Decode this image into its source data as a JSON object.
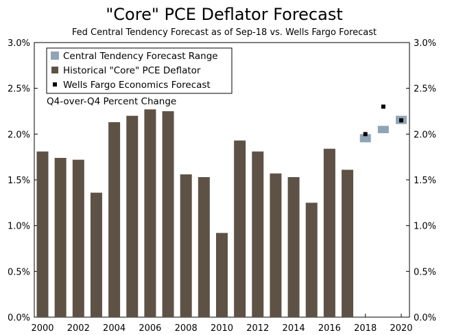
{
  "chart_data": {
    "type": "bar",
    "title": "\"Core\" PCE Deflator Forecast",
    "subtitle": "Fed Central Tendency Forecast as of Sep-18 vs. Wells Fargo Forecast",
    "annotation": "Q4-over-Q4 Percent Change",
    "xlabel": "",
    "ylabel": "",
    "ylim": [
      0,
      3.0
    ],
    "xlim": [
      2000,
      2020
    ],
    "y_ticks": [
      "0.0%",
      "0.5%",
      "1.0%",
      "1.5%",
      "2.0%",
      "2.5%",
      "3.0%"
    ],
    "y_tick_values": [
      0,
      0.5,
      1.0,
      1.5,
      2.0,
      2.5,
      3.0
    ],
    "x_ticks": [
      "2000",
      "2002",
      "2004",
      "2006",
      "2008",
      "2010",
      "2012",
      "2014",
      "2016",
      "2018",
      "2020"
    ],
    "x_tick_values": [
      2000,
      2002,
      2004,
      2006,
      2008,
      2010,
      2012,
      2014,
      2016,
      2018,
      2020
    ],
    "grid": false,
    "legend_position": "top-left",
    "colors": {
      "historical": "#5e5246",
      "range": "#8fa4b4",
      "forecast": "#000000"
    },
    "legend": [
      {
        "label": "Central Tendency Forecast Range",
        "kind": "range"
      },
      {
        "label": "Historical \"Core\" PCE Deflator",
        "kind": "historical"
      },
      {
        "label": "Wells Fargo Economics Forecast",
        "kind": "forecast"
      }
    ],
    "series": [
      {
        "name": "Historical \"Core\" PCE Deflator",
        "type": "bar",
        "x": [
          2000,
          2001,
          2002,
          2003,
          2004,
          2005,
          2006,
          2007,
          2008,
          2009,
          2010,
          2011,
          2012,
          2013,
          2014,
          2015,
          2016,
          2017
        ],
        "values": [
          1.81,
          1.74,
          1.72,
          1.36,
          2.13,
          2.2,
          2.27,
          2.25,
          1.56,
          1.53,
          0.92,
          1.93,
          1.81,
          1.57,
          1.53,
          1.25,
          1.84,
          1.61
        ]
      },
      {
        "name": "Central Tendency Forecast Range",
        "type": "range",
        "x": [
          2018,
          2019,
          2020
        ],
        "low": [
          1.91,
          2.01,
          2.11
        ],
        "high": [
          2.0,
          2.09,
          2.2
        ]
      },
      {
        "name": "Wells Fargo Economics Forecast",
        "type": "scatter",
        "x": [
          2018,
          2019,
          2020
        ],
        "values": [
          2.0,
          2.3,
          2.15
        ]
      }
    ]
  }
}
